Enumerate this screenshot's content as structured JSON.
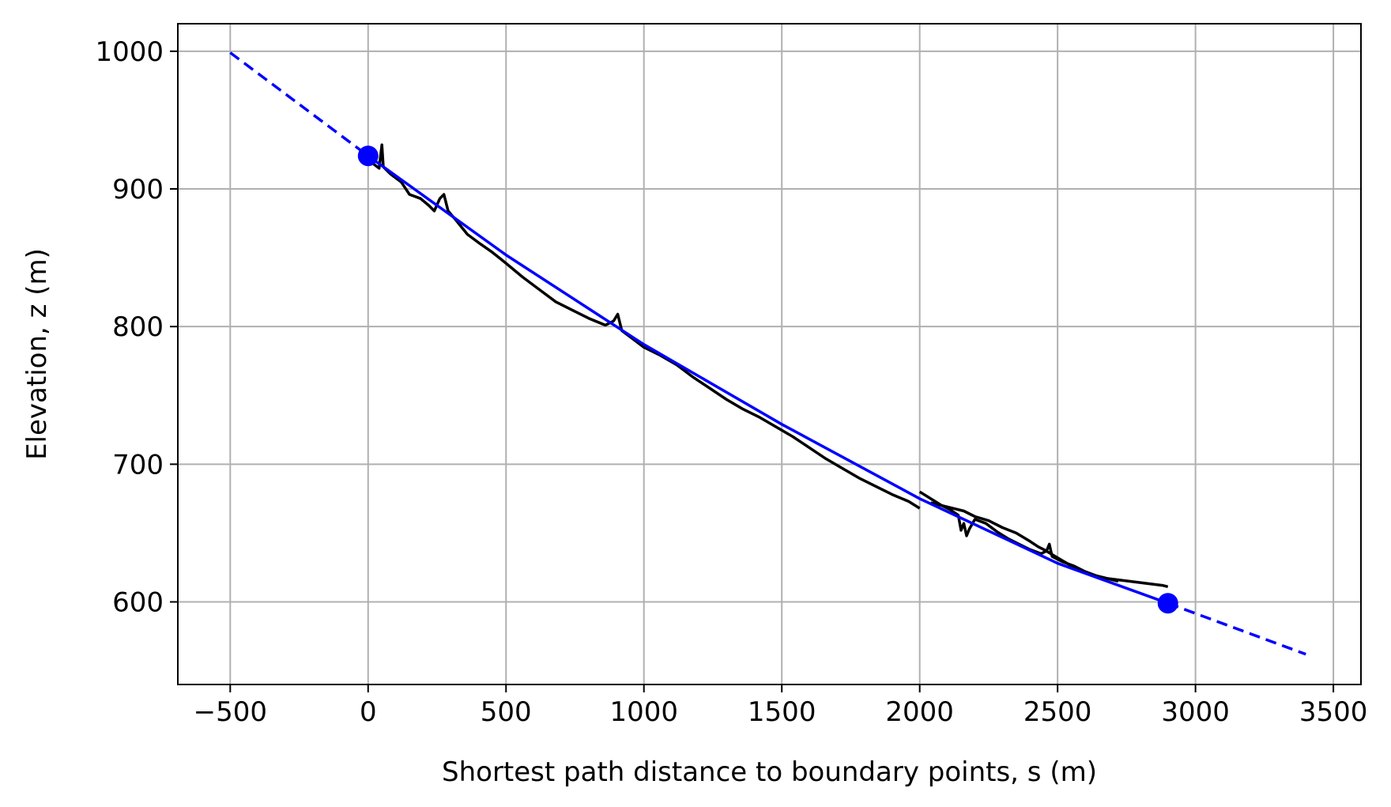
{
  "chart_data": {
    "type": "line",
    "title": "",
    "xlabel": "Shortest path distance to boundary points, s (m)",
    "ylabel": "Elevation, z (m)",
    "xlim": [
      -690,
      3600
    ],
    "ylim": [
      540,
      1020
    ],
    "xticks": [
      -500,
      0,
      500,
      1000,
      1500,
      2000,
      2500,
      3000,
      3500
    ],
    "xtick_labels": [
      "−500",
      "0",
      "500",
      "1000",
      "1500",
      "2000",
      "2500",
      "3000",
      "3500"
    ],
    "yticks": [
      600,
      700,
      800,
      900,
      1000
    ],
    "ytick_labels": [
      "600",
      "700",
      "800",
      "900",
      "1000"
    ],
    "grid": true,
    "legend": "none",
    "colors": {
      "profile": "#000000",
      "fit": "#0000ff",
      "grid": "#b0b0b0"
    },
    "series": [
      {
        "style": "black-line",
        "x": [
          0,
          20,
          40,
          50,
          55,
          80,
          120,
          150,
          190,
          220,
          240,
          260,
          275,
          290,
          320,
          360,
          400,
          450,
          500,
          560,
          620,
          680,
          740,
          800,
          860,
          890,
          905,
          920,
          960,
          1000,
          1060,
          1120,
          1180,
          1240,
          1300,
          1360,
          1420,
          1480,
          1540,
          1600,
          1660,
          1720,
          1780,
          1840,
          1900,
          1960,
          2000
        ],
        "y": [
          924,
          918,
          915,
          932,
          916,
          911,
          905,
          896,
          893,
          888,
          884,
          893,
          896,
          884,
          877,
          867,
          861,
          854,
          846,
          836,
          827,
          818,
          812,
          806,
          801,
          804,
          809,
          797,
          791,
          785,
          779,
          772,
          763,
          755,
          747,
          740,
          734,
          727,
          720,
          712,
          704,
          697,
          690,
          684,
          678,
          673,
          668
        ]
      },
      {
        "style": "black-line",
        "x": [
          2000,
          2040,
          2080,
          2110,
          2140,
          2150,
          2160,
          2170,
          2180,
          2200,
          2240,
          2280,
          2320,
          2360,
          2400,
          2440,
          2460,
          2470,
          2480,
          2520,
          2560,
          2600,
          2640,
          2680,
          2720,
          2760,
          2800,
          2840,
          2880,
          2900
        ],
        "y": [
          680,
          675,
          670,
          667,
          663,
          652,
          657,
          648,
          653,
          660,
          657,
          651,
          646,
          642,
          638,
          635,
          637,
          642,
          633,
          629,
          626,
          622,
          619,
          617,
          616,
          615,
          614,
          613,
          612,
          611
        ]
      },
      {
        "style": "black-line",
        "x": [
          2040,
          2100,
          2160,
          2200,
          2250,
          2300,
          2350,
          2400,
          2430,
          2450,
          2500,
          2560,
          2620,
          2680,
          2720
        ],
        "y": [
          672,
          669,
          666,
          662,
          659,
          654,
          650,
          644,
          640,
          638,
          632,
          625,
          620,
          617,
          615
        ]
      },
      {
        "style": "blue-line",
        "x": [
          0,
          500,
          1000,
          1500,
          2000,
          2500,
          2900
        ],
        "y": [
          924,
          852,
          787,
          729,
          675,
          628,
          599
        ]
      },
      {
        "style": "blue-dashed",
        "x": [
          -500,
          0
        ],
        "y": [
          999,
          924
        ]
      },
      {
        "style": "blue-dashed",
        "x": [
          2900,
          3400
        ],
        "y": [
          599,
          562
        ]
      },
      {
        "style": "blue-markers",
        "x": [
          0,
          2900
        ],
        "y": [
          924,
          599
        ]
      }
    ]
  }
}
